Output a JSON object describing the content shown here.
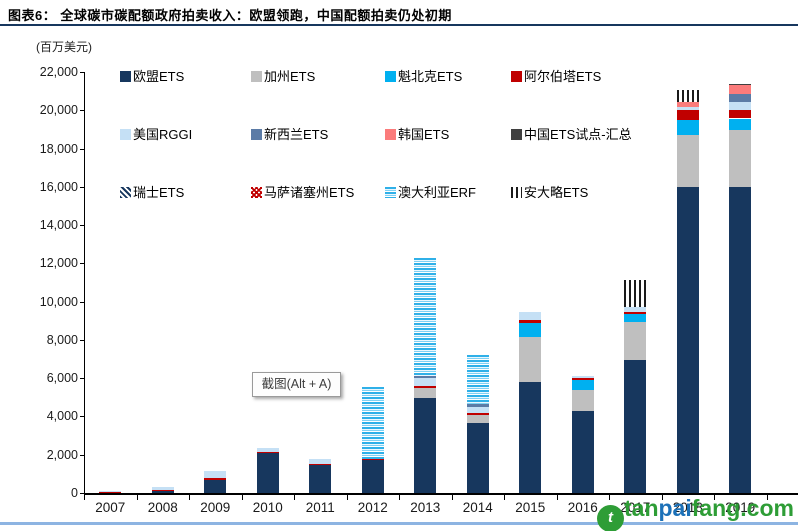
{
  "header": {
    "title": "图表6：  全球碳市碳配额政府拍卖收入：欧盟领跑，中国配额拍卖仍处初期",
    "unit_label": "(百万美元)"
  },
  "tooltip": {
    "text": "截图(Alt + A)"
  },
  "watermark": {
    "site": "tanpaifang.com",
    "logo_glyph": "t",
    "segments": [
      {
        "text": "tan",
        "color": "#2E9D36"
      },
      {
        "text": "pai",
        "color": "#1C71B8"
      },
      {
        "text": "fang",
        "color": "#2E9D36"
      },
      {
        "text": ".com",
        "color": "#2E9D36"
      }
    ]
  },
  "colors": {
    "title_rule": "#17375E",
    "bottom_rule": "#8DB4E2",
    "axis": "#000000"
  },
  "chart_data": {
    "type": "bar",
    "subtype": "stacked-vertical",
    "title": "全球碳市碳配额政府拍卖收入：欧盟领跑，中国配额拍卖仍处初期",
    "xlabel": "",
    "ylabel": "(百万美元)",
    "ylim": [
      0,
      22000
    ],
    "ytick_step": 2000,
    "grid": false,
    "legend_position": "top-left-overlay-3rows",
    "categories": [
      2007,
      2008,
      2009,
      2010,
      2011,
      2012,
      2013,
      2014,
      2015,
      2016,
      2017,
      2018,
      2019
    ],
    "series": [
      {
        "name": "欧盟ETS",
        "color": "#17375E",
        "pattern": "solid",
        "values": [
          0,
          120,
          680,
          2070,
          1460,
          1725,
          4950,
          3640,
          5800,
          4300,
          6950,
          16000,
          16000
        ]
      },
      {
        "name": "加州ETS",
        "color": "#BFBFBF",
        "pattern": "solid",
        "values": [
          0,
          0,
          0,
          0,
          0,
          0,
          520,
          435,
          2350,
          1080,
          1970,
          2700,
          2960
        ]
      },
      {
        "name": "魁北克ETS",
        "color": "#00B0F0",
        "pattern": "solid",
        "values": [
          0,
          0,
          0,
          0,
          0,
          0,
          0,
          0,
          750,
          520,
          420,
          780,
          610
        ]
      },
      {
        "name": "阿尔伯塔ETS",
        "color": "#C00000",
        "pattern": "solid",
        "values": [
          70,
          60,
          120,
          90,
          60,
          60,
          120,
          120,
          120,
          120,
          140,
          520,
          435
        ]
      },
      {
        "name": "美国RGGI",
        "color": "#C5E0F5",
        "pattern": "solid",
        "values": [
          20,
          150,
          350,
          170,
          240,
          0,
          400,
          310,
          440,
          120,
          260,
          170,
          435
        ]
      },
      {
        "name": "新西兰ETS",
        "color": "#5B7BA6",
        "pattern": "solid",
        "values": [
          0,
          0,
          0,
          0,
          0,
          0,
          120,
          170,
          0,
          0,
          0,
          0,
          435
        ]
      },
      {
        "name": "韩国ETS",
        "color": "#FB7B7B",
        "pattern": "solid",
        "values": [
          0,
          0,
          0,
          0,
          0,
          0,
          0,
          0,
          0,
          0,
          0,
          260,
          435
        ]
      },
      {
        "name": "中国ETS试点-汇总",
        "color": "#404040",
        "pattern": "solid",
        "values": [
          0,
          0,
          0,
          0,
          0,
          0,
          0,
          0,
          0,
          0,
          0,
          0,
          50
        ]
      },
      {
        "name": "瑞士ETS",
        "color": "#17375E",
        "pattern": "diag",
        "values": [
          0,
          0,
          0,
          0,
          0,
          0,
          0,
          0,
          0,
          0,
          0,
          0,
          0
        ]
      },
      {
        "name": "马萨诸塞州ETS",
        "color": "#C00000",
        "pattern": "cross",
        "values": [
          0,
          0,
          0,
          0,
          0,
          0,
          0,
          0,
          0,
          0,
          0,
          0,
          0
        ]
      },
      {
        "name": "澳大利亚ERF",
        "color": "#2FB0E8",
        "pattern": "hstripe",
        "values": [
          0,
          0,
          0,
          0,
          0,
          3755,
          6170,
          2520,
          0,
          0,
          0,
          0,
          0
        ]
      },
      {
        "name": "安大略ETS",
        "color": "#1a1a1a",
        "pattern": "vstripe",
        "values": [
          0,
          0,
          0,
          0,
          0,
          0,
          0,
          0,
          0,
          0,
          1400,
          610,
          0
        ]
      }
    ]
  }
}
